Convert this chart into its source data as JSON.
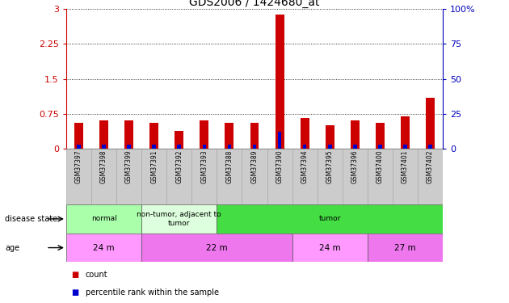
{
  "title": "GDS2006 / 1424680_at",
  "samples": [
    "GSM37397",
    "GSM37398",
    "GSM37399",
    "GSM37391",
    "GSM37392",
    "GSM37393",
    "GSM37388",
    "GSM37389",
    "GSM37390",
    "GSM37394",
    "GSM37395",
    "GSM37396",
    "GSM37400",
    "GSM37401",
    "GSM37402"
  ],
  "count_values": [
    0.55,
    0.6,
    0.6,
    0.55,
    0.38,
    0.6,
    0.55,
    0.55,
    2.88,
    0.65,
    0.5,
    0.6,
    0.55,
    0.7,
    1.1
  ],
  "percentile_values": [
    3.0,
    3.0,
    3.0,
    3.0,
    3.0,
    3.0,
    3.0,
    3.0,
    12.0,
    3.0,
    3.0,
    3.0,
    3.0,
    3.0,
    3.0
  ],
  "count_color": "#cc0000",
  "percentile_color": "#0000cc",
  "ylim_left": [
    0,
    3
  ],
  "ylim_right": [
    0,
    100
  ],
  "yticks_left": [
    0,
    0.75,
    1.5,
    2.25,
    3
  ],
  "ytick_labels_left": [
    "0",
    "0.75",
    "1.5",
    "2.25",
    "3"
  ],
  "yticks_right": [
    0,
    25,
    50,
    75,
    100
  ],
  "ytick_labels_right": [
    "0",
    "25",
    "50",
    "75",
    "100%"
  ],
  "disease_state_groups": [
    {
      "label": "normal",
      "start": 0,
      "end": 3,
      "color": "#aaffaa"
    },
    {
      "label": "non-tumor, adjacent to\ntumor",
      "start": 3,
      "end": 6,
      "color": "#ddffdd"
    },
    {
      "label": "tumor",
      "start": 6,
      "end": 15,
      "color": "#44dd44"
    }
  ],
  "age_groups": [
    {
      "label": "24 m",
      "start": 0,
      "end": 3,
      "color": "#ff99ff"
    },
    {
      "label": "22 m",
      "start": 3,
      "end": 9,
      "color": "#ee77ee"
    },
    {
      "label": "24 m",
      "start": 9,
      "end": 12,
      "color": "#ff99ff"
    },
    {
      "label": "27 m",
      "start": 12,
      "end": 15,
      "color": "#ee77ee"
    }
  ],
  "disease_state_label": "disease state",
  "age_label": "age",
  "legend_items": [
    {
      "label": "count",
      "color": "#cc0000"
    },
    {
      "label": "percentile rank within the sample",
      "color": "#0000cc"
    }
  ],
  "tick_color_left": "#cc0000",
  "tick_color_right": "#0000bb"
}
